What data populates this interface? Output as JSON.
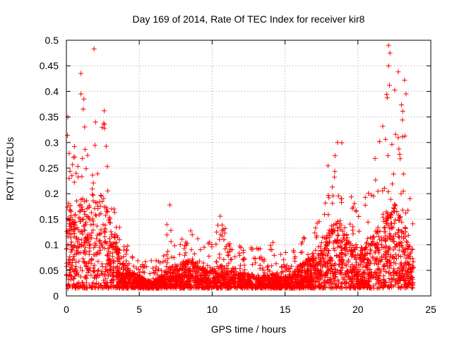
{
  "chart_data": {
    "type": "scatter",
    "title": "Day 169 of 2014, Rate Of TEC Index for receiver kir8",
    "xlabel": "GPS time / hours",
    "ylabel": "ROTI / TECUs",
    "xlim": [
      0,
      25
    ],
    "ylim": [
      0,
      0.5
    ],
    "grid": true,
    "marker": "+",
    "marker_color": "#ff0000",
    "x_ticks": [
      0,
      5,
      10,
      15,
      20,
      25
    ],
    "x_tick_labels": [
      "0",
      "5",
      "10",
      "15",
      "20",
      "25"
    ],
    "y_ticks": [
      0,
      0.05,
      0.1,
      0.15,
      0.2,
      0.25,
      0.3,
      0.35,
      0.4,
      0.45,
      0.5
    ],
    "y_tick_labels": [
      "0",
      "0.05",
      "0.1",
      "0.15",
      "0.2",
      "0.25",
      "0.3",
      "0.35",
      "0.4",
      "0.45",
      "0.5"
    ],
    "series": [
      {
        "name": "ROTI",
        "x_range": [
          0,
          23.8
        ],
        "envelope": {
          "x": [
            0,
            0.5,
            1,
            1.5,
            2,
            2.5,
            3,
            3.5,
            4,
            4.5,
            5,
            5.5,
            6,
            6.5,
            7,
            7.5,
            8,
            8.5,
            9,
            9.5,
            10,
            10.5,
            11,
            11.5,
            12,
            12.5,
            13,
            13.5,
            14,
            14.5,
            15,
            15.5,
            16,
            16.5,
            17,
            17.5,
            18,
            18.5,
            19,
            19.5,
            20,
            20.5,
            21,
            21.5,
            22,
            22.5,
            23,
            23.5,
            23.8
          ],
          "y_max": [
            0.35,
            0.28,
            0.4,
            0.3,
            0.33,
            0.35,
            0.3,
            0.16,
            0.12,
            0.08,
            0.07,
            0.07,
            0.07,
            0.07,
            0.18,
            0.1,
            0.12,
            0.14,
            0.13,
            0.12,
            0.12,
            0.16,
            0.13,
            0.09,
            0.11,
            0.11,
            0.1,
            0.09,
            0.13,
            0.08,
            0.09,
            0.09,
            0.11,
            0.12,
            0.13,
            0.17,
            0.29,
            0.31,
            0.3,
            0.2,
            0.17,
            0.2,
            0.24,
            0.34,
            0.42,
            0.49,
            0.4,
            0.21,
            0.15
          ],
          "y_typical": [
            0.12,
            0.1,
            0.13,
            0.12,
            0.15,
            0.13,
            0.1,
            0.07,
            0.04,
            0.035,
            0.03,
            0.025,
            0.025,
            0.03,
            0.04,
            0.045,
            0.05,
            0.05,
            0.045,
            0.04,
            0.04,
            0.045,
            0.04,
            0.035,
            0.035,
            0.035,
            0.03,
            0.03,
            0.035,
            0.03,
            0.03,
            0.035,
            0.045,
            0.05,
            0.06,
            0.07,
            0.09,
            0.1,
            0.09,
            0.07,
            0.06,
            0.07,
            0.08,
            0.1,
            0.11,
            0.12,
            0.1,
            0.08,
            0.06
          ]
        },
        "outliers": [
          {
            "x": 0.1,
            "y": 0.35
          },
          {
            "x": 1.0,
            "y": 0.435
          },
          {
            "x": 1.0,
            "y": 0.395
          },
          {
            "x": 1.2,
            "y": 0.385
          },
          {
            "x": 1.9,
            "y": 0.483
          },
          {
            "x": 2.0,
            "y": 0.34
          },
          {
            "x": 2.6,
            "y": 0.362
          },
          {
            "x": 7.1,
            "y": 0.178
          },
          {
            "x": 22.1,
            "y": 0.49
          },
          {
            "x": 22.2,
            "y": 0.475
          },
          {
            "x": 22.1,
            "y": 0.45
          },
          {
            "x": 23.2,
            "y": 0.422
          },
          {
            "x": 23.3,
            "y": 0.395
          },
          {
            "x": 18.6,
            "y": 0.3
          }
        ]
      }
    ]
  }
}
